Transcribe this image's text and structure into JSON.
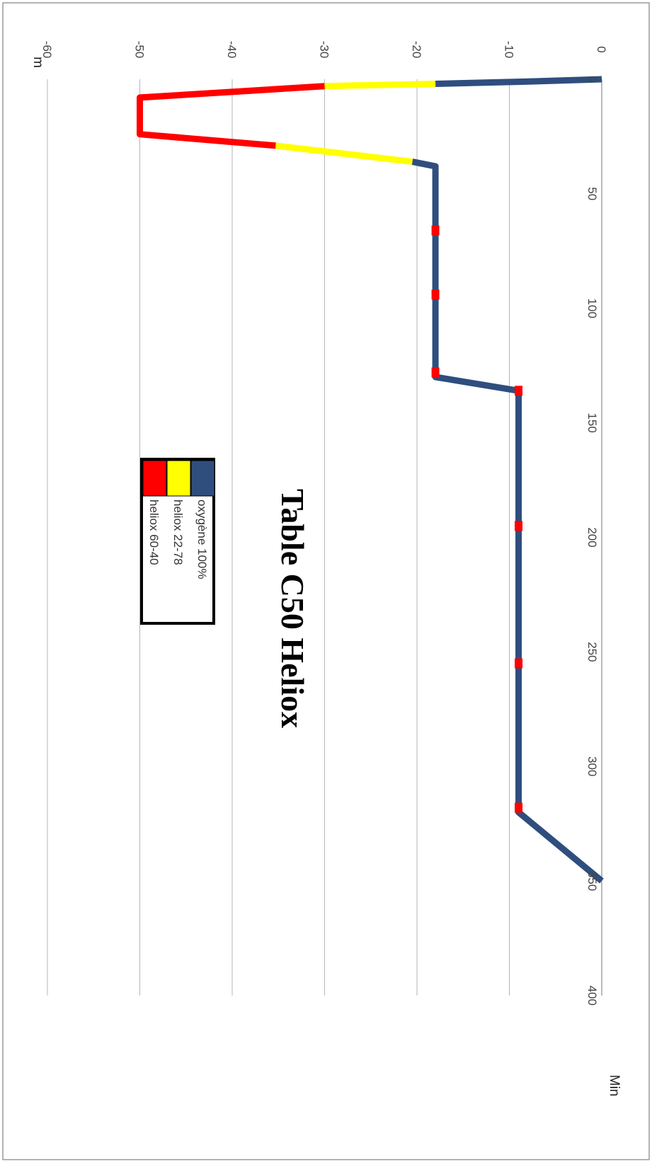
{
  "chart_data": {
    "type": "line",
    "title": "Table C50 Heliox",
    "xlabel": "Min",
    "ylabel": "m",
    "xlim": [
      0,
      400
    ],
    "ylim": [
      -60,
      0
    ],
    "x_ticks": [
      "0",
      "50",
      "100",
      "150",
      "200",
      "250",
      "300",
      "350",
      "400"
    ],
    "y_ticks": [
      "0",
      "-10",
      "-20",
      "-30",
      "-40",
      "-50",
      "-60"
    ],
    "grid": true,
    "orientation": "rotated-90-clockwise",
    "legend_position": "center",
    "series": [
      {
        "name": "oxygène 100%",
        "color": "#2f4e7e",
        "segments": [
          [
            [
              0,
              0
            ],
            [
              1,
              -8
            ],
            [
              2,
              -18
            ]
          ],
          [
            [
              36,
              -20.5
            ],
            [
              38,
              -18
            ],
            [
              130,
              -18
            ],
            [
              136,
              -9
            ],
            [
              320,
              -9
            ],
            [
              350,
              0
            ]
          ]
        ]
      },
      {
        "name": "heliox 22-78",
        "color": "#ffff00",
        "segments": [
          [
            [
              2,
              -18
            ],
            [
              3,
              -30
            ]
          ],
          [
            [
              29,
              -35.3
            ],
            [
              36,
              -20.5
            ]
          ]
        ]
      },
      {
        "name": "heliox 60-40",
        "color": "#ff0000",
        "segments": [
          [
            [
              3,
              -30
            ],
            [
              8,
              -50
            ],
            [
              24,
              -50
            ],
            [
              29,
              -35.3
            ]
          ]
        ]
      }
    ],
    "markers": {
      "color": "#ff0000",
      "points": [
        [
          66,
          -18
        ],
        [
          94,
          -18
        ],
        [
          128,
          -18
        ],
        [
          136,
          -9
        ],
        [
          195,
          -9
        ],
        [
          255,
          -9
        ],
        [
          318,
          -9
        ]
      ]
    }
  }
}
